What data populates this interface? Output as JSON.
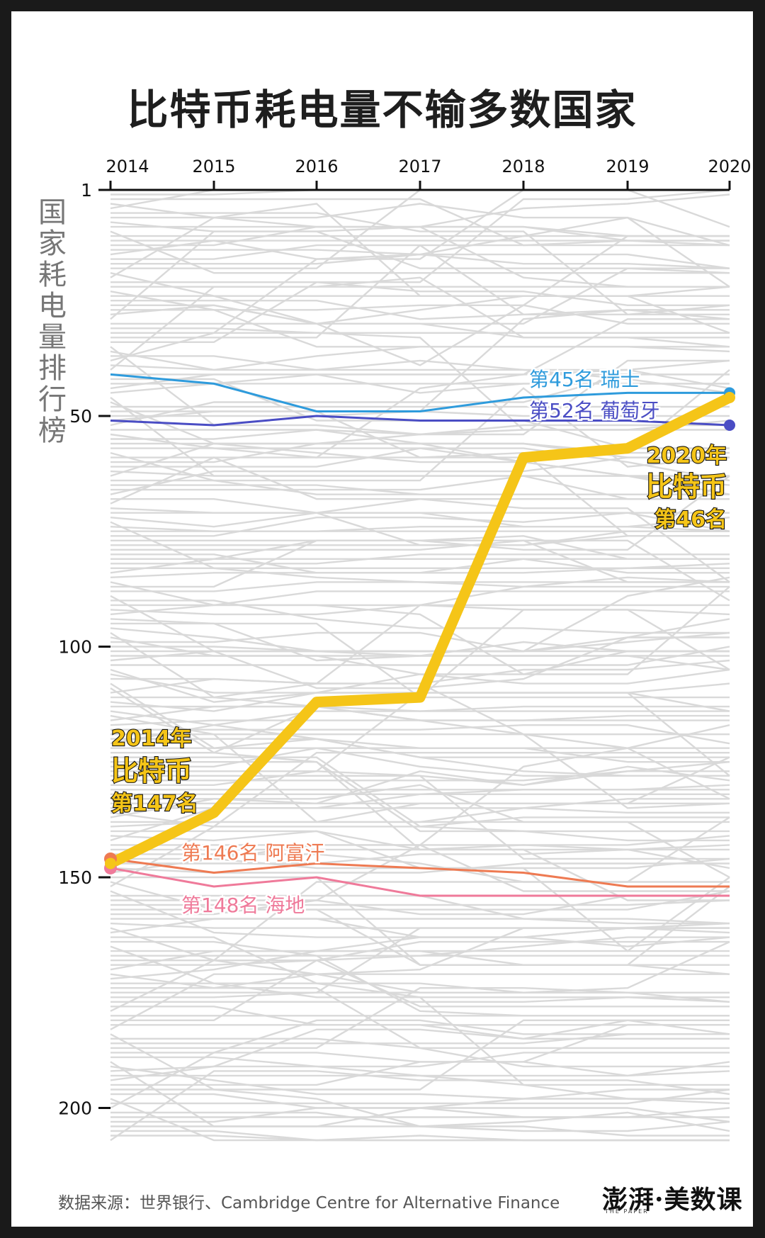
{
  "title": "比特币耗电量不输多数国家",
  "source": "数据来源：世界银行、Cambridge Centre for Alternative Finance",
  "logo": "澎湃·美数课",
  "logo_sub": "THE PAPER",
  "colors": {
    "bitcoin": "#F5C518",
    "switzerland": "#2E9BDC",
    "portugal": "#4A4DC4",
    "afghanistan": "#EE7A52",
    "haiti": "#EF7A9A",
    "background_lines": "#D9D9D9"
  },
  "chart_data": {
    "type": "line",
    "title": "比特币耗电量不输多数国家",
    "xlabel": "",
    "ylabel": "国家耗电量排行榜",
    "x": [
      "2014",
      "2015",
      "2016",
      "2017",
      "2018",
      "2019",
      "2020"
    ],
    "y_ticks": [
      "1",
      "50",
      "100",
      "150",
      "200"
    ],
    "y_inverted": true,
    "ylim": [
      1,
      207
    ],
    "legend": "none",
    "series": [
      {
        "name": "瑞士",
        "values": [
          41,
          43,
          49,
          49,
          46,
          45,
          45
        ],
        "label": "第45名  瑞士",
        "color": "#2E9BDC"
      },
      {
        "name": "葡萄牙",
        "values": [
          51,
          52,
          50,
          51,
          51,
          51,
          52
        ],
        "label": "第52名  葡萄牙",
        "color": "#4A4DC4"
      },
      {
        "name": "阿富汗",
        "values": [
          146,
          149,
          147,
          148,
          149,
          152,
          152
        ],
        "label": "第146名  阿富汗",
        "color": "#EE7A52"
      },
      {
        "name": "海地",
        "values": [
          148,
          152,
          150,
          154,
          154,
          154,
          154
        ],
        "label": "第148名  海地",
        "color": "#EF7A9A"
      },
      {
        "name": "比特币",
        "values": [
          147,
          136,
          112,
          111,
          59,
          57,
          46
        ],
        "color": "#F5C518"
      }
    ],
    "annotations": [
      {
        "lines": [
          "2014年",
          "比特币",
          "第147名"
        ],
        "x": "2014",
        "y": 147
      },
      {
        "lines": [
          "2020年",
          "比特币",
          "第46名"
        ],
        "x": "2020",
        "y": 46
      }
    ]
  }
}
